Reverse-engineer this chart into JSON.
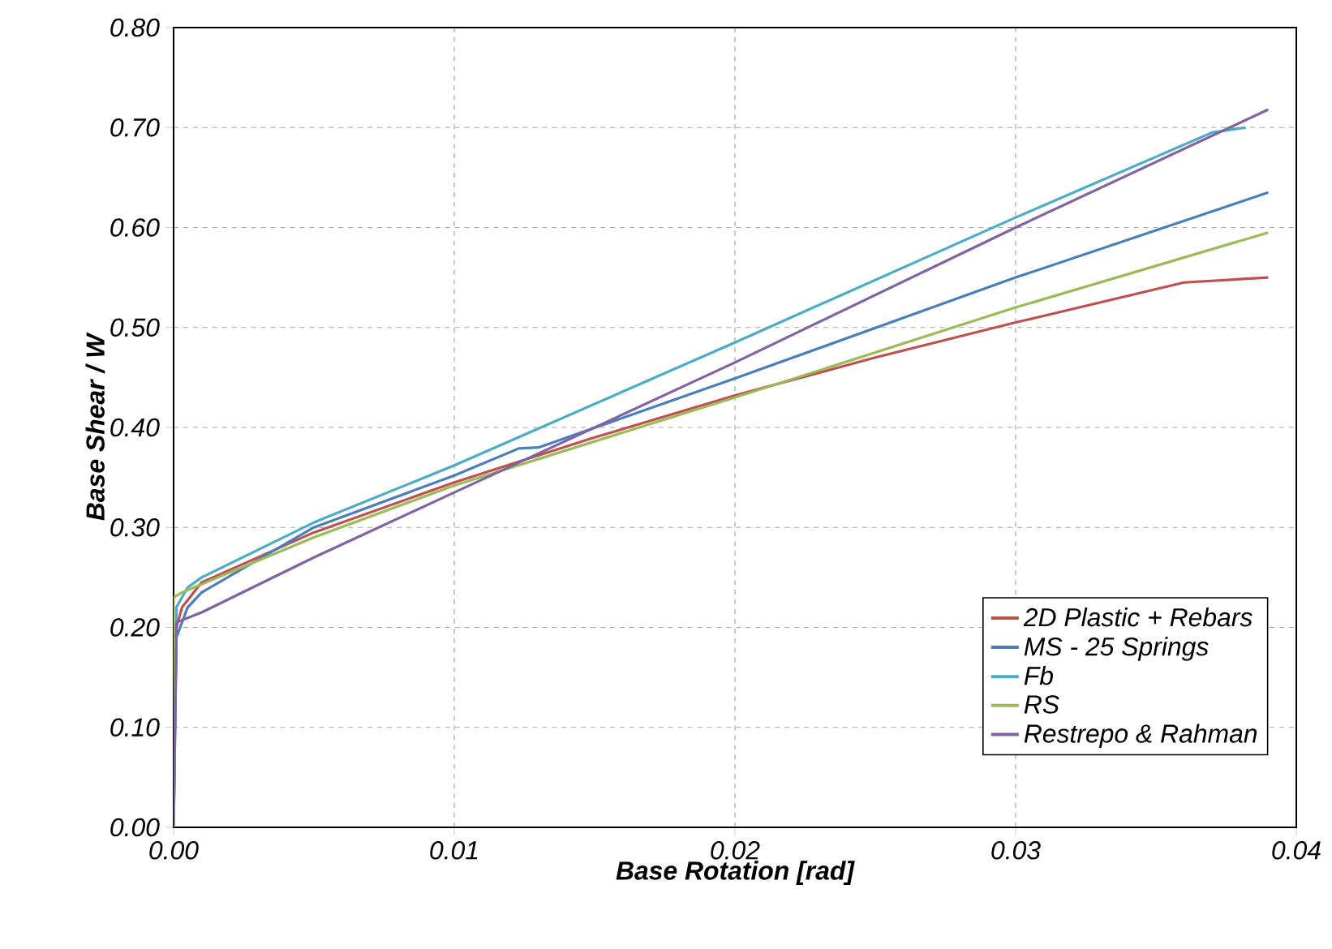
{
  "chart_data": {
    "type": "line",
    "xlabel": "Base Rotation [rad]",
    "ylabel": "Base Shear / W",
    "xlim": [
      0,
      0.04
    ],
    "ylim": [
      0,
      0.8
    ],
    "xticks": [
      {
        "value": 0,
        "label": "0.00"
      },
      {
        "value": 0.01,
        "label": "0.01"
      },
      {
        "value": 0.02,
        "label": "0.02"
      },
      {
        "value": 0.03,
        "label": "0.03"
      },
      {
        "value": 0.04,
        "label": "0.04"
      }
    ],
    "yticks": [
      {
        "value": 0,
        "label": "0.00"
      },
      {
        "value": 0.1,
        "label": "0.10"
      },
      {
        "value": 0.2,
        "label": "0.20"
      },
      {
        "value": 0.3,
        "label": "0.30"
      },
      {
        "value": 0.4,
        "label": "0.40"
      },
      {
        "value": 0.5,
        "label": "0.50"
      },
      {
        "value": 0.6,
        "label": "0.60"
      },
      {
        "value": 0.7,
        "label": "0.70"
      },
      {
        "value": 0.8,
        "label": "0.80"
      }
    ],
    "grid": true,
    "legend": "bottom right",
    "marker": "none",
    "line_style": "solid",
    "series": [
      {
        "name": "2D Plastic + Rebars",
        "color": "#c0504d",
        "x": [
          0,
          0.0001,
          0.0003,
          0.001,
          0.005,
          0.01,
          0.015,
          0.02,
          0.025,
          0.03,
          0.036,
          0.039
        ],
        "values": [
          0,
          0.2,
          0.22,
          0.245,
          0.295,
          0.345,
          0.39,
          0.432,
          0.47,
          0.505,
          0.545,
          0.55
        ]
      },
      {
        "name": "MS - 25 Springs",
        "color": "#4a7ebb",
        "x": [
          0,
          0.0001,
          0.0005,
          0.001,
          0.005,
          0.01,
          0.0123,
          0.013,
          0.02,
          0.03,
          0.039
        ],
        "values": [
          0,
          0.19,
          0.22,
          0.235,
          0.3,
          0.352,
          0.379,
          0.38,
          0.449,
          0.55,
          0.635
        ]
      },
      {
        "name": "Fb",
        "color": "#4bacc6",
        "x": [
          0,
          0.0001,
          0.0005,
          0.001,
          0.005,
          0.01,
          0.02,
          0.03,
          0.037,
          0.0382
        ],
        "values": [
          0,
          0.22,
          0.24,
          0.25,
          0.305,
          0.362,
          0.485,
          0.61,
          0.695,
          0.7
        ]
      },
      {
        "name": "RS",
        "color": "#9bbb59",
        "x": [
          0,
          0,
          0.0003,
          0.005,
          0.01,
          0.02,
          0.03,
          0.039
        ],
        "values": [
          0,
          0.23,
          0.235,
          0.29,
          0.342,
          0.43,
          0.52,
          0.595
        ]
      },
      {
        "name": "Restrepo & Rahman",
        "color": "#8064a2",
        "x": [
          0,
          0.0001,
          0.001,
          0.005,
          0.01,
          0.02,
          0.03,
          0.039
        ],
        "values": [
          0,
          0.205,
          0.215,
          0.27,
          0.335,
          0.465,
          0.6,
          0.718
        ]
      }
    ]
  }
}
